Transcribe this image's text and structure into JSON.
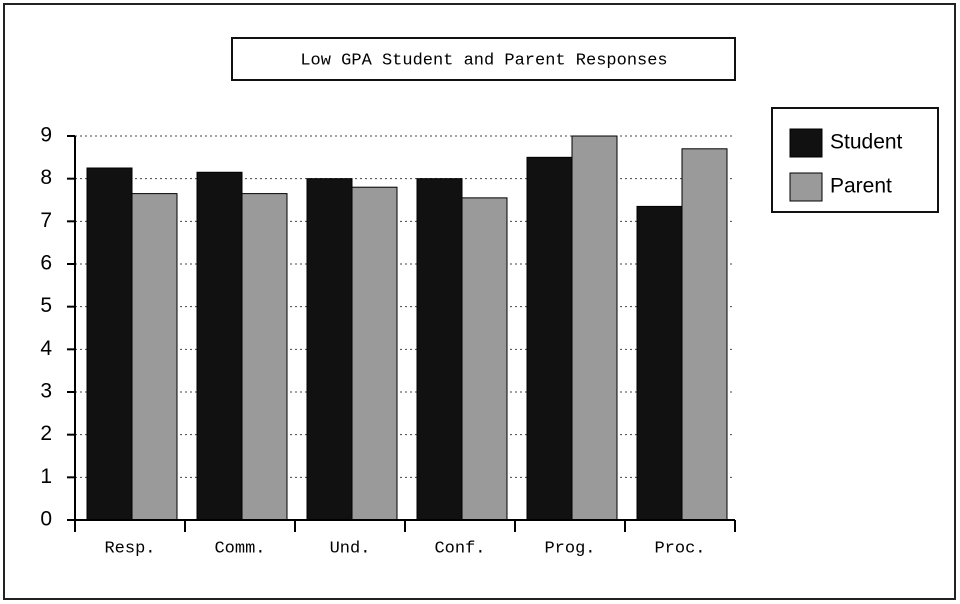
{
  "chart_data": {
    "type": "bar",
    "title": "Low GPA Student and Parent Responses",
    "categories": [
      "Resp.",
      "Comm.",
      "Und.",
      "Conf.",
      "Prog.",
      "Proc."
    ],
    "series": [
      {
        "name": "Student",
        "color": "#111111",
        "values": [
          8.25,
          8.15,
          8.0,
          8.0,
          8.5,
          7.35
        ]
      },
      {
        "name": "Parent",
        "color": "#9a9a9a",
        "values": [
          7.65,
          7.65,
          7.8,
          7.55,
          9.0,
          8.7
        ]
      }
    ],
    "ylim": [
      0,
      9
    ],
    "yticks": [
      0,
      1,
      2,
      3,
      4,
      5,
      6,
      7,
      8,
      9
    ],
    "grid": true,
    "legend": "right"
  }
}
